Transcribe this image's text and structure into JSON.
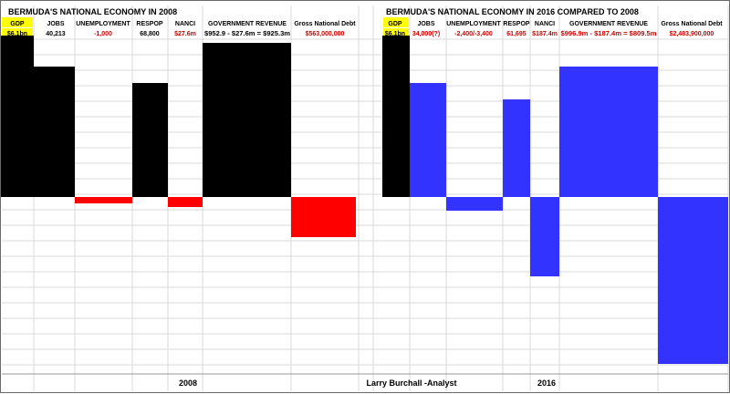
{
  "chart_data": [
    {
      "type": "bar",
      "title": "BERMUDA'S NATIONAL ECONOMY IN 2008",
      "xlabel": "2008",
      "grid": true,
      "columns": [
        {
          "header": "GDP",
          "value_label": "$6.1bn",
          "value_color": "#000000",
          "bar_direction": "up",
          "bar_color": "#000000"
        },
        {
          "header": "JOBS",
          "value_label": "40,213",
          "value_color": "#000000",
          "bar_direction": "up",
          "bar_color": "#000000"
        },
        {
          "header": "UNEMPLOYMENT",
          "value_label": "-1,000",
          "value_color": "#cc0000",
          "bar_direction": "down",
          "bar_color": "#ff0000"
        },
        {
          "header": "RESPOP",
          "value_label": "68,800",
          "value_color": "#000000",
          "bar_direction": "up",
          "bar_color": "#000000"
        },
        {
          "header": "NANCI",
          "value_label": "$27.6m",
          "value_color": "#cc0000",
          "bar_direction": "down",
          "bar_color": "#ff0000"
        },
        {
          "header": "GOVERNMENT REVENUE",
          "value_label": "$952.9 - $27.6m = $925.3m",
          "value_color": "#000000",
          "bar_direction": "up",
          "bar_color": "#000000"
        },
        {
          "header": "Gross National Debt",
          "value_label": "$563,000,000",
          "value_color": "#cc0000",
          "bar_direction": "down",
          "bar_color": "#ff0000"
        }
      ]
    },
    {
      "type": "bar",
      "title": "BERMUDA'S NATIONAL ECONOMY IN 2016 COMPARED TO 2008",
      "xlabel": "2016",
      "grid": true,
      "columns": [
        {
          "header": "GDP",
          "value_label": "$6.1bn",
          "value_color": "#000000",
          "bar_direction": "up",
          "bar_color": "#000000"
        },
        {
          "header": "JOBS",
          "value_label": "34,000(?)",
          "value_color": "#cc0000",
          "bar_direction": "up",
          "bar_color": "#3333ff"
        },
        {
          "header": "UNEMPLOYMENT",
          "value_label": "-2,400/-3,400",
          "value_color": "#cc0000",
          "bar_direction": "down",
          "bar_color": "#3333ff"
        },
        {
          "header": "RESPOP",
          "value_label": "61,695",
          "value_color": "#cc0000",
          "bar_direction": "up",
          "bar_color": "#3333ff"
        },
        {
          "header": "NANCI",
          "value_label": "$187.4m",
          "value_color": "#cc0000",
          "bar_direction": "down",
          "bar_color": "#3333ff"
        },
        {
          "header": "GOVERNMENT REVENUE",
          "value_label": "$996.9m - $187.4m = $809.5m",
          "value_color": "#cc0000",
          "bar_direction": "up",
          "bar_color": "#3333ff"
        },
        {
          "header": "Gross National  Debt",
          "value_label": "$2,483,900,000",
          "value_color": "#cc0000",
          "bar_direction": "down",
          "bar_color": "#3333ff"
        }
      ]
    }
  ],
  "footer": {
    "left_year": "2008",
    "credit": "Larry Burchall -Analyst",
    "right_year": "2016"
  },
  "colors": {
    "gdp_highlight": "#ffff00",
    "grid": "#d9d9d9",
    "positive_2008": "#000000",
    "negative_2008": "#ff0000",
    "bars_2016": "#3333ff"
  }
}
